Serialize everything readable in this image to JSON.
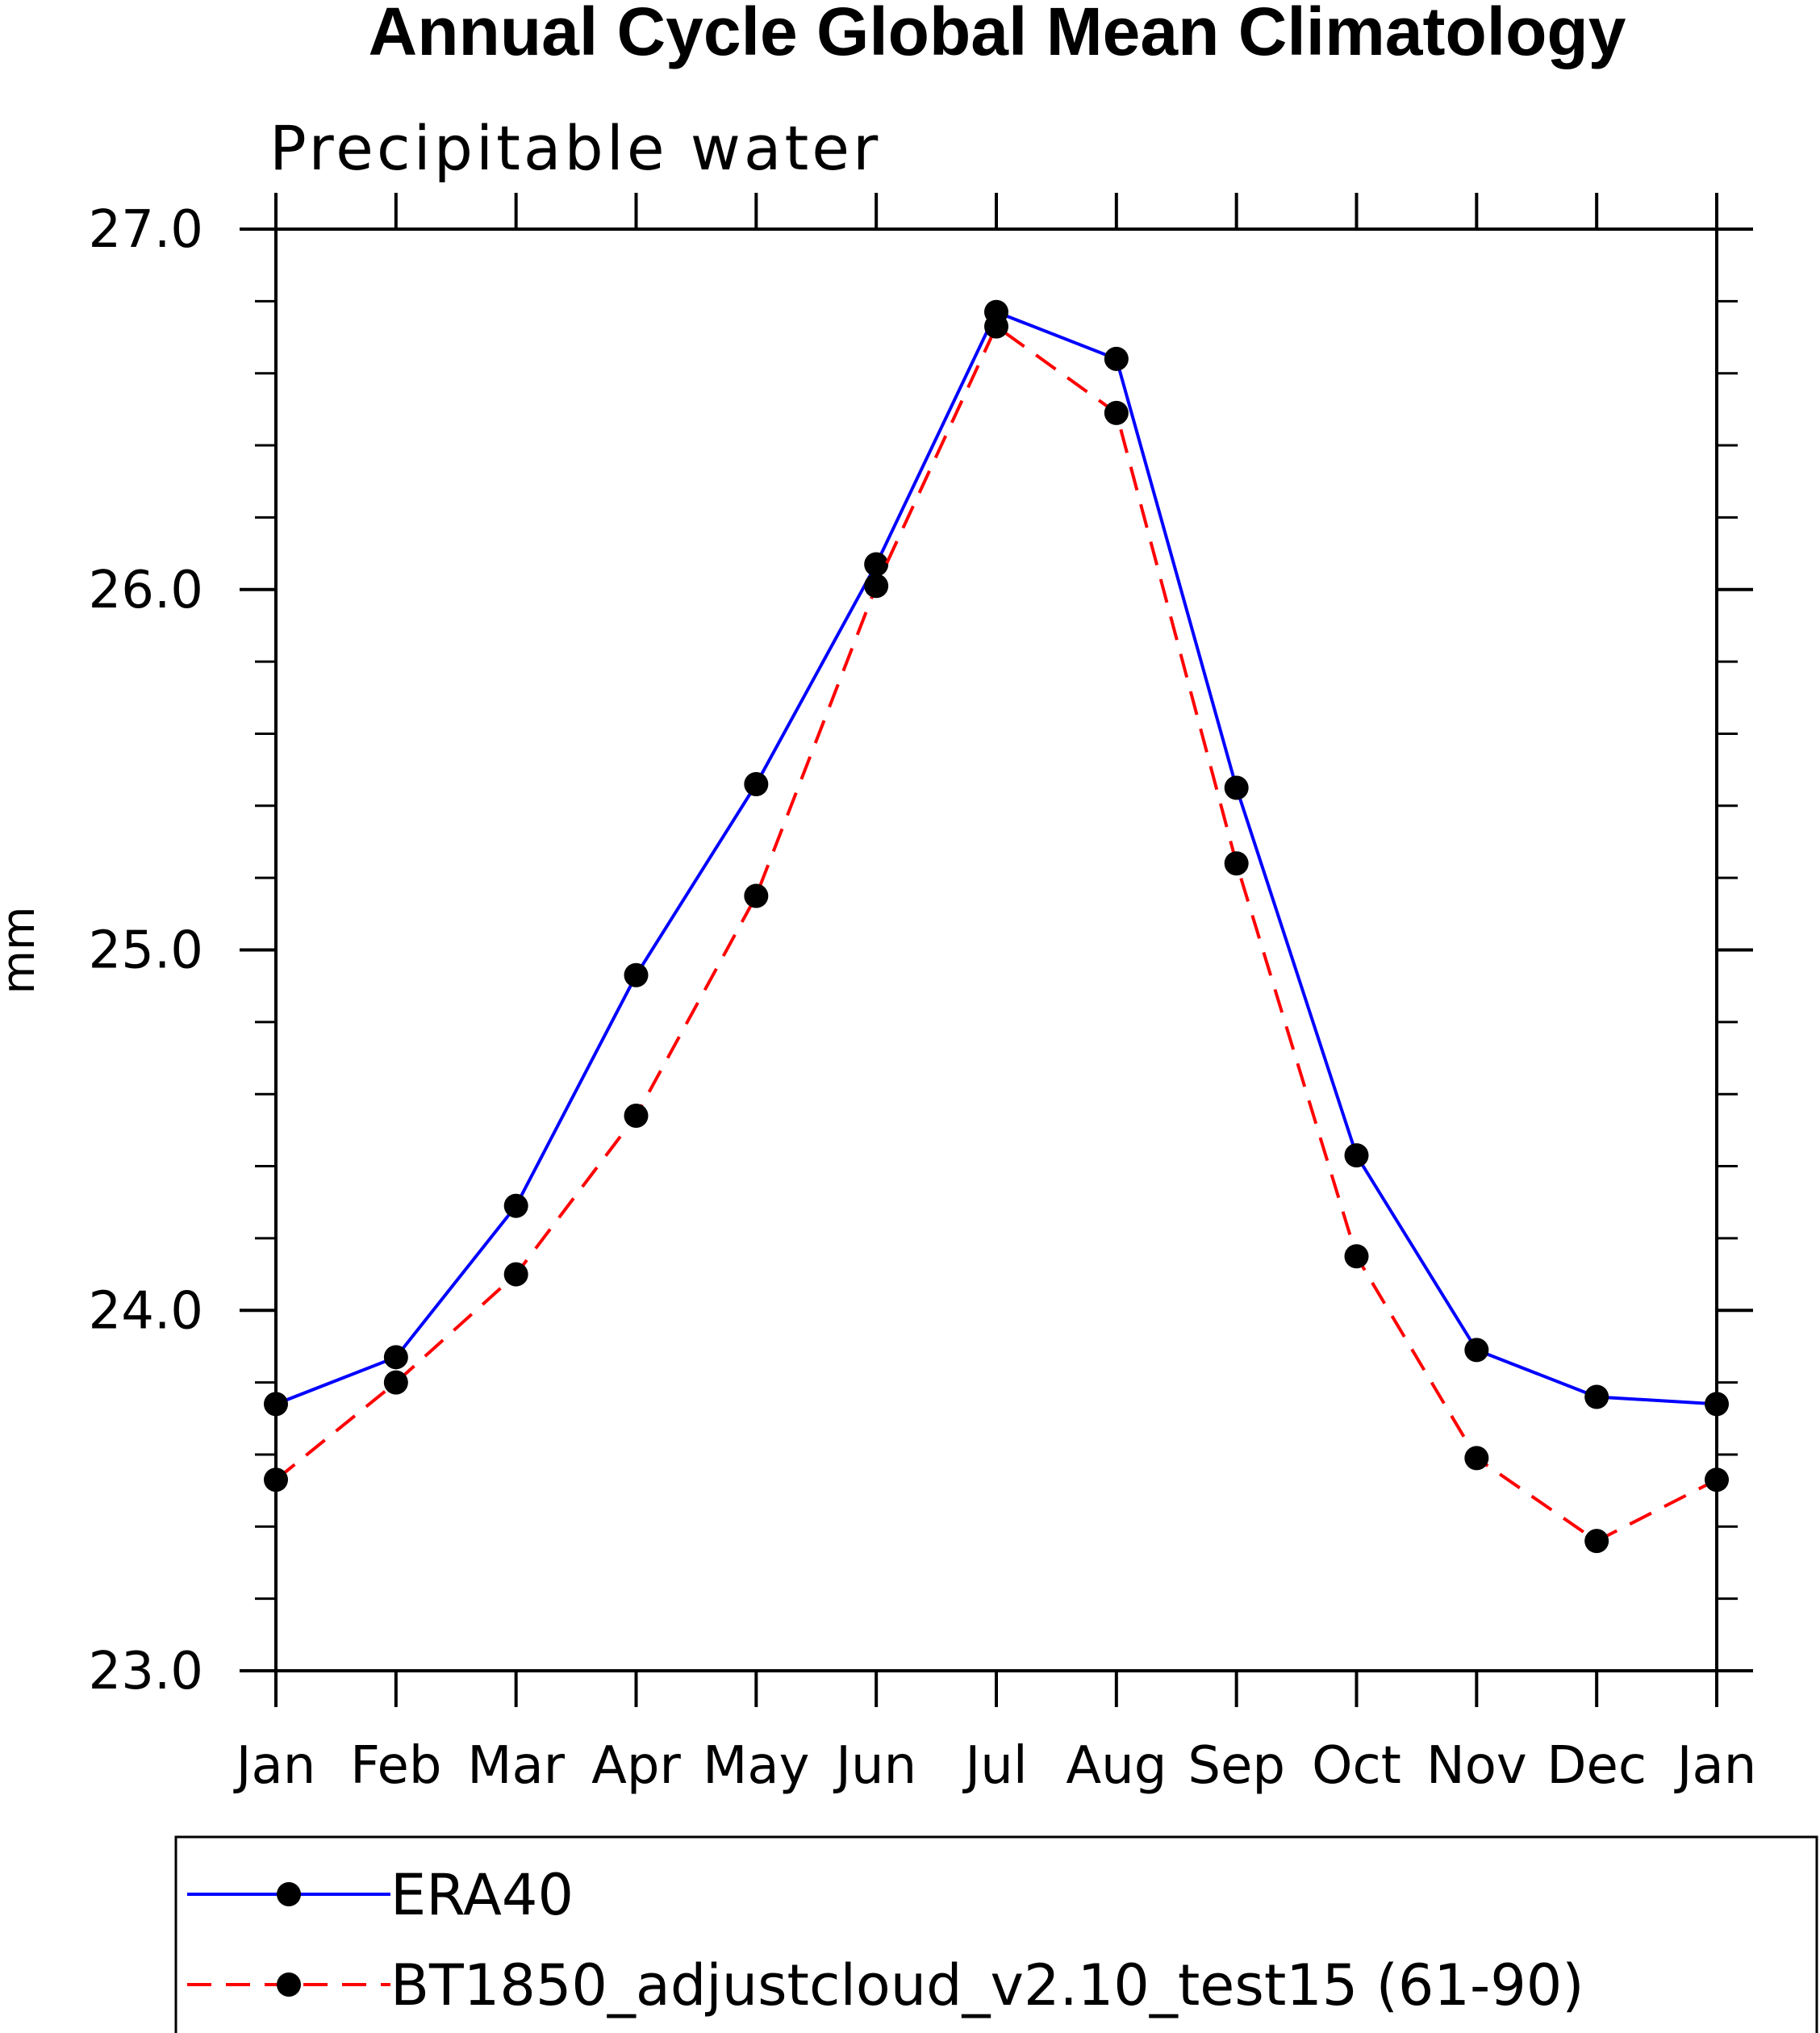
{
  "chart_data": {
    "type": "line",
    "title": "Annual Cycle Global Mean Climatology",
    "subtitle": "Precipitable water",
    "xlabel": "",
    "ylabel": "mm",
    "categories": [
      "Jan",
      "Feb",
      "Mar",
      "Apr",
      "May",
      "Jun",
      "Jul",
      "Aug",
      "Sep",
      "Oct",
      "Nov",
      "Dec",
      "Jan"
    ],
    "ylim": [
      23.0,
      27.0
    ],
    "yticks": [
      "23.0",
      "24.0",
      "25.0",
      "26.0",
      "27.0"
    ],
    "y_minor_step": 0.2,
    "grid": false,
    "legend_position": "bottom",
    "series": [
      {
        "name": "ERA40",
        "color": "#0000ff",
        "dash": "solid",
        "marker": "filled-circle",
        "values": [
          23.74,
          23.87,
          24.29,
          24.93,
          25.46,
          26.07,
          26.77,
          26.64,
          25.45,
          24.43,
          23.89,
          23.76,
          23.74
        ]
      },
      {
        "name": "BT1850_adjustcloud_v2.10_test15 (61-90)",
        "color": "#ff0000",
        "dash": "dashed",
        "marker": "filled-circle",
        "values": [
          23.53,
          23.8,
          24.1,
          24.54,
          25.15,
          26.01,
          26.73,
          26.49,
          25.24,
          24.15,
          23.59,
          23.36,
          23.53
        ]
      }
    ]
  }
}
